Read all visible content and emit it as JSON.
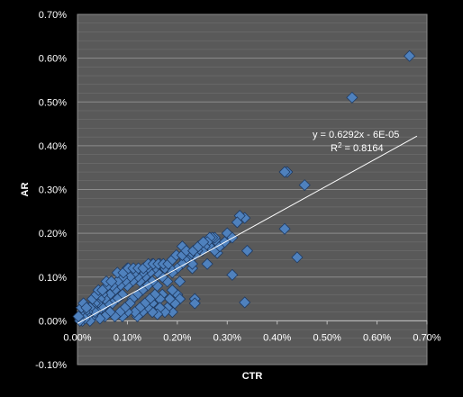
{
  "chart_data": {
    "type": "scatter",
    "title": "",
    "xlabel": "CTR",
    "ylabel": "AR",
    "xlim": [
      0,
      0.007
    ],
    "ylim": [
      -0.001,
      0.007
    ],
    "grid": true,
    "legend": "none",
    "x_ticks": [
      "0.00%",
      "0.10%",
      "0.20%",
      "0.30%",
      "0.40%",
      "0.50%",
      "0.60%",
      "0.70%"
    ],
    "y_ticks": [
      "-0.10%",
      "0.00%",
      "0.10%",
      "0.20%",
      "0.30%",
      "0.40%",
      "0.50%",
      "0.60%",
      "0.70%"
    ],
    "colors": {
      "background": "#000000",
      "plot_area": "#595959",
      "grid": "#8c8c8c",
      "marker": "#4f81bd",
      "marker_edge": "#1f3b63",
      "trendline": "#ffffff",
      "text": "#ffffff"
    },
    "marker_shape": "diamond",
    "trendline": {
      "slope": 0.6292,
      "intercept": -6e-05,
      "x_range": [
        0,
        0.0075
      ],
      "equation": "y = 0.6292x - 6E-05",
      "r2_prefix": "R",
      "r2_sup": "2",
      "r2_value": " = 0.8164"
    },
    "points": [
      [
        0.00665,
        0.00605
      ],
      [
        0.0055,
        0.0051
      ],
      [
        0.0042,
        0.0034
      ],
      [
        0.00415,
        0.0034
      ],
      [
        0.00455,
        0.0031
      ],
      [
        0.00415,
        0.0021
      ],
      [
        0.0044,
        0.00145
      ],
      [
        0.0031,
        0.00105
      ],
      [
        0.0034,
        0.0016
      ],
      [
        0.00335,
        0.00042
      ],
      [
        0.00335,
        0.00235
      ],
      [
        0.00325,
        0.0024
      ],
      [
        0.0032,
        0.00225
      ],
      [
        0.00305,
        0.0019
      ],
      [
        0.003,
        0.002
      ],
      [
        0.0029,
        0.00175
      ],
      [
        0.0028,
        0.0018
      ],
      [
        0.0028,
        0.00155
      ],
      [
        0.00275,
        0.0019
      ],
      [
        0.0027,
        0.0019
      ],
      [
        0.00265,
        0.0017
      ],
      [
        0.00265,
        0.0019
      ],
      [
        0.0026,
        0.0018
      ],
      [
        0.0026,
        0.0013
      ],
      [
        0.00255,
        0.0017
      ],
      [
        0.0025,
        0.0016
      ],
      [
        0.0024,
        0.0016
      ],
      [
        0.00235,
        0.0015
      ],
      [
        0.0023,
        0.0012
      ],
      [
        0.00235,
        0.0005
      ],
      [
        0.00235,
        0.0004
      ],
      [
        0.0023,
        0.0013
      ],
      [
        0.00225,
        0.0015
      ],
      [
        0.0022,
        0.0014
      ],
      [
        0.0021,
        0.0017
      ],
      [
        0.00215,
        0.0014
      ],
      [
        0.0021,
        0.0013
      ],
      [
        0.002,
        0.0012
      ],
      [
        0.00205,
        0.0009
      ],
      [
        0.002,
        0.0006
      ],
      [
        0.00205,
        0.0005
      ],
      [
        0.0019,
        0.0011
      ],
      [
        0.0019,
        0.0007
      ],
      [
        0.00195,
        0.0004
      ],
      [
        0.0019,
        0.0002
      ],
      [
        0.00185,
        0.0012
      ],
      [
        0.0018,
        0.0009
      ],
      [
        0.00185,
        0.0005
      ],
      [
        0.0018,
        0.0003
      ],
      [
        0.00175,
        0.0012
      ],
      [
        0.0017,
        0.001
      ],
      [
        0.0017,
        0.0006
      ],
      [
        0.00175,
        0.0002
      ],
      [
        0.00165,
        0.0013
      ],
      [
        0.0016,
        0.0011
      ],
      [
        0.0016,
        0.0008
      ],
      [
        0.00165,
        0.0005
      ],
      [
        0.00165,
        0.0003
      ],
      [
        0.0016,
        0.00015
      ],
      [
        0.00155,
        0.0012
      ],
      [
        0.0015,
        0.0013
      ],
      [
        0.0015,
        0.0009
      ],
      [
        0.00155,
        0.0006
      ],
      [
        0.0015,
        0.0004
      ],
      [
        0.0015,
        0.0002
      ],
      [
        0.00145,
        0.0011
      ],
      [
        0.0014,
        0.0012
      ],
      [
        0.0014,
        0.0008
      ],
      [
        0.00145,
        0.0005
      ],
      [
        0.0014,
        0.0003
      ],
      [
        0.00135,
        0.001
      ],
      [
        0.0013,
        0.0011
      ],
      [
        0.0013,
        0.0007
      ],
      [
        0.00135,
        0.0004
      ],
      [
        0.0013,
        0.0002
      ],
      [
        0.00125,
        0.0009
      ],
      [
        0.0012,
        0.001
      ],
      [
        0.0012,
        0.0006
      ],
      [
        0.00125,
        0.0003
      ],
      [
        0.0012,
        0.0001
      ],
      [
        0.00115,
        0.0011
      ],
      [
        0.0011,
        0.0009
      ],
      [
        0.0011,
        0.0005
      ],
      [
        0.00115,
        0.0002
      ],
      [
        0.00105,
        0.001
      ],
      [
        0.001,
        0.0012
      ],
      [
        0.001,
        0.0008
      ],
      [
        0.00105,
        0.0004
      ],
      [
        0.001,
        0.0002
      ],
      [
        0.00095,
        0.0009
      ],
      [
        0.0009,
        0.001
      ],
      [
        0.0009,
        0.0006
      ],
      [
        0.00095,
        0.0003
      ],
      [
        0.0009,
        0.0001
      ],
      [
        0.00085,
        0.0008
      ],
      [
        0.0008,
        0.0009
      ],
      [
        0.0008,
        0.0005
      ],
      [
        0.00085,
        0.0002
      ],
      [
        0.00075,
        0.0007
      ],
      [
        0.0007,
        0.0008
      ],
      [
        0.0007,
        0.0004
      ],
      [
        0.00075,
        0.0001
      ],
      [
        0.00065,
        0.0006
      ],
      [
        0.0006,
        0.0008
      ],
      [
        0.0006,
        0.0004
      ],
      [
        0.00065,
        0.0002
      ],
      [
        0.00055,
        0.0005
      ],
      [
        0.0005,
        0.0006
      ],
      [
        0.0005,
        0.0003
      ],
      [
        0.00055,
        0.0001
      ],
      [
        0.00045,
        0.0005
      ],
      [
        0.0004,
        0.0004
      ],
      [
        0.0004,
        0.0002
      ],
      [
        0.00045,
        5e-05
      ],
      [
        0.00035,
        0.0004
      ],
      [
        0.0003,
        0.0003
      ],
      [
        0.0003,
        0.0001
      ],
      [
        0.00035,
        0.0002
      ],
      [
        0.00025,
        0.0003
      ],
      [
        0.0002,
        0.0002
      ],
      [
        0.0002,
        0.0001
      ],
      [
        0.00025,
        0.0
      ],
      [
        0.00015,
        0.0002
      ],
      [
        0.0001,
        0.0001
      ],
      [
        0.0001,
        0.0
      ],
      [
        0.00015,
        5e-05
      ],
      [
        5e-05,
        5e-05
      ],
      [
        5e-05,
        0.0
      ],
      [
        2e-05,
        0.0001
      ],
      [
        8e-05,
        0.0003
      ],
      [
        0.00012,
        0.0004
      ],
      [
        0.00018,
        0.0003
      ],
      [
        0.0003,
        0.0005
      ],
      [
        0.00038,
        0.0006
      ],
      [
        0.00042,
        0.0007
      ],
      [
        0.0005,
        0.0007
      ],
      [
        0.00058,
        0.0009
      ],
      [
        0.00068,
        0.0009
      ],
      [
        0.0008,
        0.0011
      ],
      [
        0.00092,
        0.0011
      ],
      [
        0.00102,
        0.0012
      ],
      [
        0.00112,
        0.0012
      ],
      [
        0.00122,
        0.0012
      ],
      [
        0.00132,
        0.0012
      ],
      [
        0.00142,
        0.0013
      ],
      [
        0.00152,
        0.0013
      ],
      [
        0.00162,
        0.0013
      ],
      [
        0.00172,
        0.0013
      ],
      [
        0.00182,
        0.0013
      ],
      [
        0.0019,
        0.0014
      ],
      [
        0.00198,
        0.0015
      ],
      [
        0.0021,
        0.0015
      ],
      [
        0.00218,
        0.0016
      ],
      [
        0.00232,
        0.0016
      ],
      [
        0.00242,
        0.0017
      ],
      [
        0.00252,
        0.0018
      ],
      [
        0.00275,
        0.0016
      ],
      [
        0.00285,
        0.0017
      ],
      [
        0.00295,
        0.0018
      ],
      [
        0.0031,
        0.0019
      ]
    ]
  }
}
